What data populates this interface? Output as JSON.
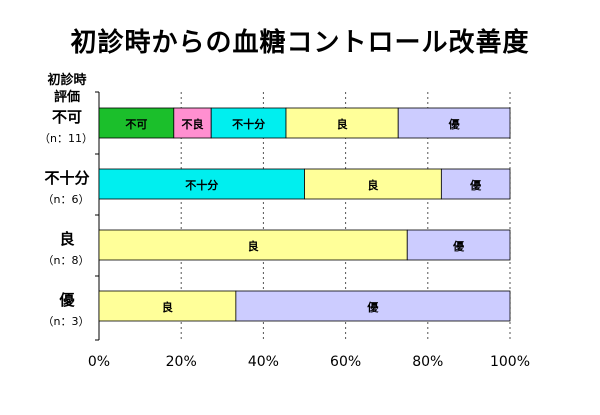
{
  "title": "初診時からの血糖コントロール改善度",
  "chart_data": {
    "type": "bar",
    "stacked": true,
    "orientation": "horizontal",
    "title": "初診時からの血糖コントロール改善度",
    "category_axis_label": [
      "初診時",
      "評価"
    ],
    "xlim": [
      0,
      100
    ],
    "xticks": [
      "0%",
      "20%",
      "40%",
      "60%",
      "80%",
      "100%"
    ],
    "grid": true,
    "rows": [
      {
        "category": "不可",
        "n_label": "（n：11）",
        "segments": [
          {
            "label": "不可",
            "value": 18.2,
            "color": "#1bbf2b"
          },
          {
            "label": "不良",
            "value": 9.1,
            "color": "#ff8fd0"
          },
          {
            "label": "不十分",
            "value": 18.2,
            "color": "#00efef"
          },
          {
            "label": "良",
            "value": 27.3,
            "color": "#ffff99"
          },
          {
            "label": "優",
            "value": 27.2,
            "color": "#ccccff"
          }
        ]
      },
      {
        "category": "不十分",
        "n_label": "（n：6）",
        "segments": [
          {
            "label": "不十分",
            "value": 50.0,
            "color": "#00efef"
          },
          {
            "label": "良",
            "value": 33.3,
            "color": "#ffff99"
          },
          {
            "label": "優",
            "value": 16.7,
            "color": "#ccccff"
          }
        ]
      },
      {
        "category": "良",
        "n_label": "（n：8）",
        "segments": [
          {
            "label": "良",
            "value": 75.0,
            "color": "#ffff99"
          },
          {
            "label": "優",
            "value": 25.0,
            "color": "#ccccff"
          }
        ]
      },
      {
        "category": "優",
        "n_label": "（n：3）",
        "segments": [
          {
            "label": "良",
            "value": 33.3,
            "color": "#ffff99"
          },
          {
            "label": "優",
            "value": 66.7,
            "color": "#ccccff"
          }
        ]
      }
    ]
  }
}
